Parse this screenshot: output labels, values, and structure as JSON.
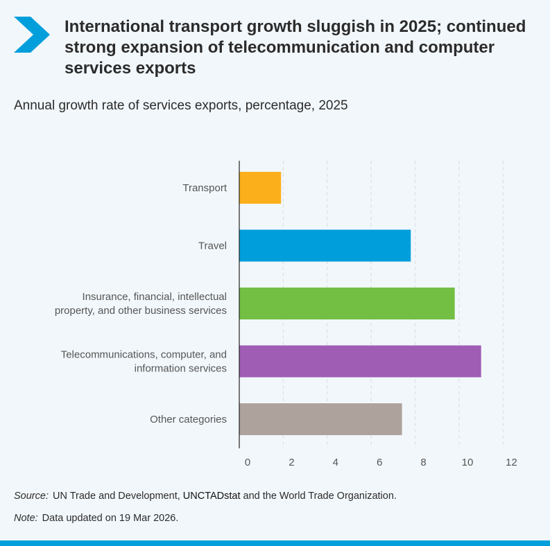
{
  "header": {
    "title": "International transport growth sluggish in 2025; continued strong expansion of telecommunication and computer services exports",
    "icon": "chevron-right-icon"
  },
  "colors": {
    "accent": "#009edb",
    "transport": "#fbb01b",
    "travel": "#009edb",
    "insurance": "#72bf44",
    "telecom": "#a05db4",
    "other": "#ada29c"
  },
  "chart_data": {
    "type": "bar",
    "orientation": "horizontal",
    "title": "Annual growth rate of services exports, percentage, 2025",
    "categories": [
      [
        "Transport"
      ],
      [
        "Travel"
      ],
      [
        "Insurance, financial, intellectual",
        "property, and other business services"
      ],
      [
        "Telecommunications, computer, and",
        "information services"
      ],
      [
        "Other categories"
      ]
    ],
    "values": [
      1.9,
      7.8,
      9.8,
      11.0,
      7.4
    ],
    "xlim": [
      0,
      12
    ],
    "xticks": [
      "0",
      "2",
      "4",
      "6",
      "8",
      "10",
      "12"
    ],
    "xlabel": "",
    "ylabel": "",
    "grid": true,
    "legend": "none"
  },
  "footer": {
    "source_label": "Source:",
    "source_pre": "UN Trade and Development, ",
    "source_link": "UNCTADstat",
    "source_post": " and the World Trade Organization.",
    "note_label": "Note:",
    "note_text": "Data updated on 19 Mar 2026."
  }
}
